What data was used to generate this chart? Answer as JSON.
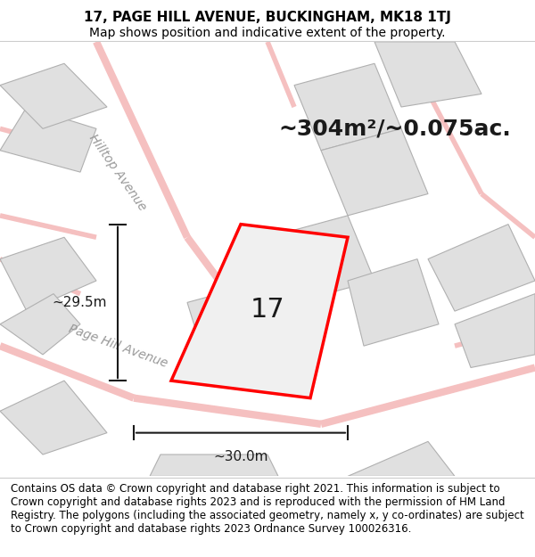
{
  "title_line1": "17, PAGE HILL AVENUE, BUCKINGHAM, MK18 1TJ",
  "title_line2": "Map shows position and indicative extent of the property.",
  "footer_text": "Contains OS data © Crown copyright and database right 2021. This information is subject to Crown copyright and database rights 2023 and is reproduced with the permission of HM Land Registry. The polygons (including the associated geometry, namely x, y co-ordinates) are subject to Crown copyright and database rights 2023 Ordnance Survey 100026316.",
  "area_text": "~304m²/~0.075ac.",
  "number_label": "17",
  "dim_vertical": "~29.5m",
  "dim_horizontal": "~30.0m",
  "street_label1": "Hilltop Avenue",
  "street_label2": "Page Hill Avenue",
  "map_bg": "#f5f5f5",
  "title_bg": "#ffffff",
  "footer_bg": "#ffffff",
  "road_color_light": "#f5c0c0",
  "road_color_gray": "#c8c8c8",
  "property_color": "#ff0000",
  "property_fill": "#f0f0f0",
  "block_fill": "#e0e0e0",
  "block_edge": "#b0b0b0",
  "dim_color": "#1a1a1a",
  "title_fontsize": 11,
  "subtitle_fontsize": 10,
  "footer_fontsize": 8.5,
  "area_fontsize": 18,
  "number_fontsize": 22,
  "street_fontsize": 10,
  "dim_fontsize": 11
}
